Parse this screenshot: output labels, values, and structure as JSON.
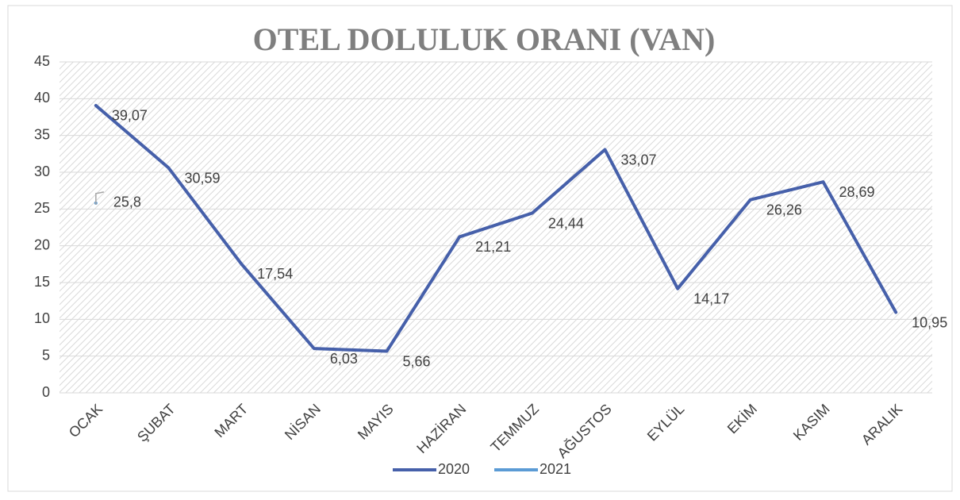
{
  "chart_data": {
    "type": "line",
    "title": "OTEL DOLULUK ORANI (VAN)",
    "categories": [
      "OCAK",
      "ŞUBAT",
      "MART",
      "NİSAN",
      "MAYIS",
      "HAZİRAN",
      "TEMMUZ",
      "AĞUSTOS",
      "EYLÜL",
      "EKİM",
      "KASIM",
      "ARALIK"
    ],
    "series": [
      {
        "name": "2020",
        "color": "#4660aa",
        "values": [
          39.07,
          30.59,
          17.54,
          6.03,
          5.66,
          21.21,
          24.44,
          33.07,
          14.17,
          26.26,
          28.69,
          10.95
        ],
        "value_labels": [
          "39,07",
          "30,59",
          "17,54",
          "6,03",
          "5,66",
          "21,21",
          "24,44",
          "33,07",
          "14,17",
          "26,26",
          "28,69",
          "10,95"
        ]
      },
      {
        "name": "2021",
        "color": "#5b9bd5",
        "values": [
          25.8,
          null,
          null,
          null,
          null,
          null,
          null,
          null,
          null,
          null,
          null,
          null
        ],
        "value_labels": [
          "25,8",
          null,
          null,
          null,
          null,
          null,
          null,
          null,
          null,
          null,
          null,
          null
        ]
      }
    ],
    "ylim": [
      0,
      45
    ],
    "yticks": [
      0,
      5,
      10,
      15,
      20,
      25,
      30,
      35,
      40,
      45
    ],
    "grid": true,
    "legend": "bottom"
  }
}
